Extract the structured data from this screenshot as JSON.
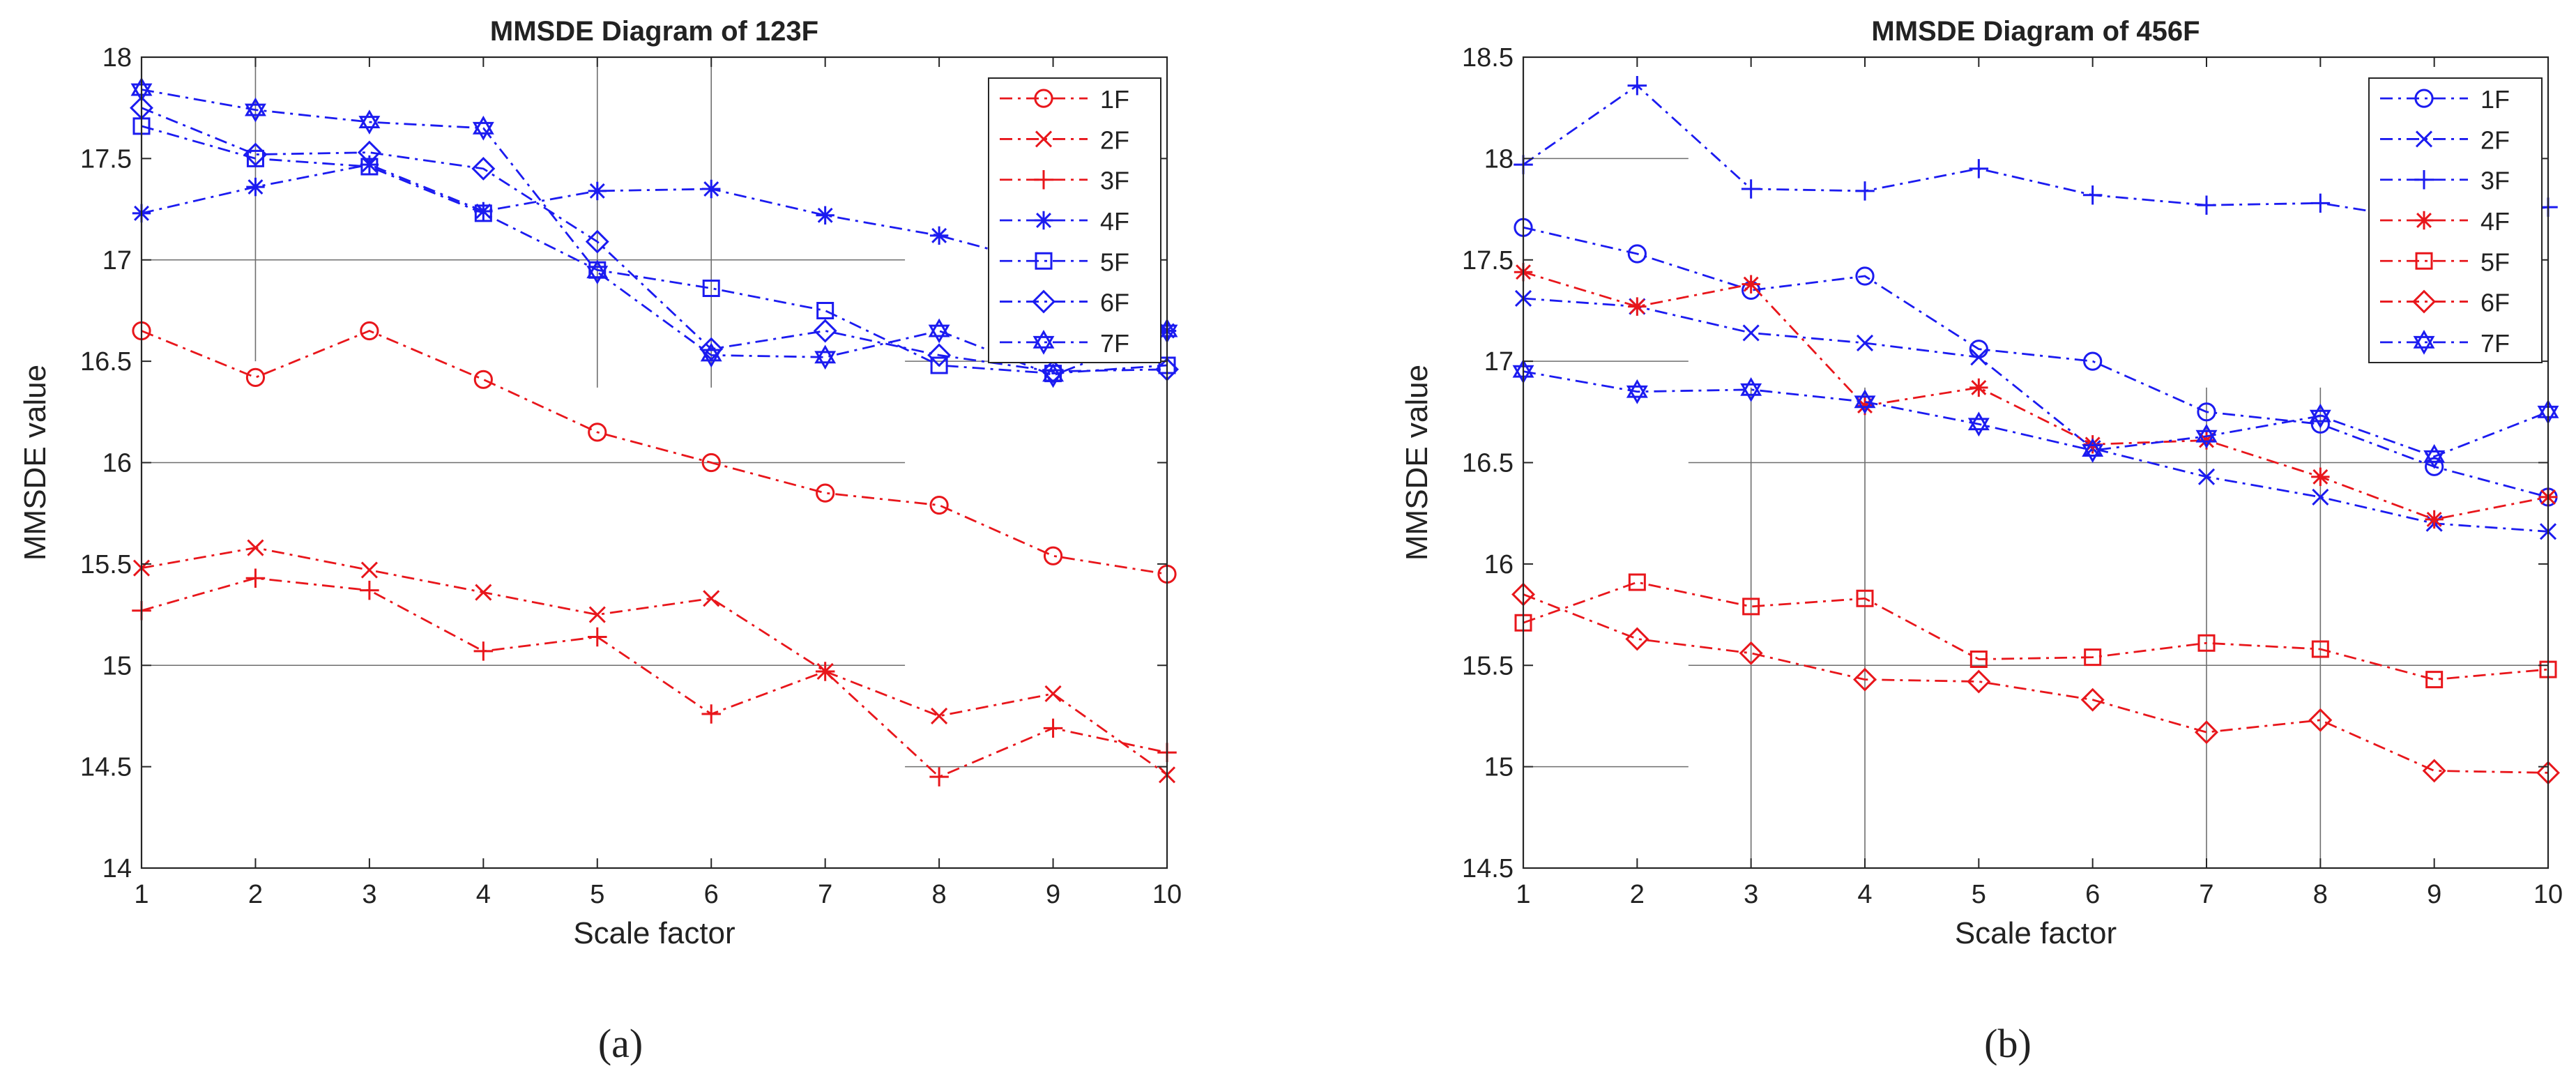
{
  "colors": {
    "red": "#e8161b",
    "blue": "#1b1bf0",
    "axis": "#262626",
    "grid": "#6e6e6e"
  },
  "chart_data": [
    {
      "type": "line",
      "panel_label": "(a)",
      "title": "MMSDE Diagram of 123F",
      "xlabel": "Scale factor",
      "ylabel": "MMSDE value",
      "xlim": [
        1,
        10
      ],
      "ylim": [
        14,
        18
      ],
      "xticks": [
        1,
        2,
        3,
        4,
        5,
        6,
        7,
        8,
        9,
        10
      ],
      "yticks": [
        14,
        14.5,
        15,
        15.5,
        16,
        16.5,
        17,
        17.5,
        18
      ],
      "ytick_labels": [
        "14",
        "14.5",
        "15",
        "15.5",
        "16",
        "16.5",
        "17",
        "17.5",
        "18"
      ],
      "legend_position": "top-right",
      "series": [
        {
          "name": "1F",
          "color": "red",
          "marker": "circle",
          "values": [
            16.65,
            16.42,
            16.65,
            16.41,
            16.15,
            16.0,
            15.85,
            15.79,
            15.54,
            15.45
          ]
        },
        {
          "name": "2F",
          "color": "red",
          "marker": "x",
          "values": [
            15.48,
            15.58,
            15.47,
            15.36,
            15.25,
            15.33,
            14.97,
            14.75,
            14.86,
            14.46
          ]
        },
        {
          "name": "3F",
          "color": "red",
          "marker": "plus",
          "values": [
            15.27,
            15.43,
            15.37,
            15.07,
            15.14,
            14.76,
            14.97,
            14.45,
            14.69,
            14.57
          ]
        },
        {
          "name": "4F",
          "color": "blue",
          "marker": "star",
          "values": [
            17.23,
            17.36,
            17.47,
            17.24,
            17.34,
            17.35,
            17.22,
            17.12,
            16.97,
            16.65
          ]
        },
        {
          "name": "5F",
          "color": "blue",
          "marker": "square",
          "values": [
            17.66,
            17.5,
            17.46,
            17.23,
            16.95,
            16.86,
            16.75,
            16.48,
            16.44,
            16.48
          ]
        },
        {
          "name": "6F",
          "color": "blue",
          "marker": "diamond",
          "values": [
            17.75,
            17.52,
            17.53,
            17.45,
            17.09,
            16.56,
            16.65,
            16.53,
            16.45,
            16.46
          ]
        },
        {
          "name": "7F",
          "color": "blue",
          "marker": "hexagram",
          "values": [
            17.84,
            17.74,
            17.68,
            17.65,
            16.94,
            16.53,
            16.52,
            16.65,
            16.43,
            16.65
          ]
        }
      ],
      "grid_segments": [
        {
          "orientation": "v",
          "at": 2,
          "from": 16.5,
          "to": 18
        },
        {
          "orientation": "v",
          "at": 5,
          "from": 16.37,
          "to": 18
        },
        {
          "orientation": "v",
          "at": 6,
          "from": 16.37,
          "to": 18
        },
        {
          "orientation": "h",
          "at": 17,
          "from": 1,
          "to": 7.7
        },
        {
          "orientation": "h",
          "at": 16,
          "from": 1,
          "to": 7.7
        },
        {
          "orientation": "h",
          "at": 15,
          "from": 1,
          "to": 7.7
        },
        {
          "orientation": "h",
          "at": 14.5,
          "from": 7.7,
          "to": 10
        },
        {
          "orientation": "h",
          "at": 16.5,
          "from": 7.7,
          "to": 10
        }
      ]
    },
    {
      "type": "line",
      "panel_label": "(b)",
      "title": "MMSDE Diagram of 456F",
      "xlabel": "Scale factor",
      "ylabel": "MMSDE value",
      "xlim": [
        1,
        10
      ],
      "ylim": [
        14.5,
        18.5
      ],
      "xticks": [
        1,
        2,
        3,
        4,
        5,
        6,
        7,
        8,
        9,
        10
      ],
      "yticks": [
        14.5,
        15,
        15.5,
        16,
        16.5,
        17,
        17.5,
        18,
        18.5
      ],
      "ytick_labels": [
        "14.5",
        "15",
        "15.5",
        "16",
        "16.5",
        "17",
        "17.5",
        "18",
        "18.5"
      ],
      "legend_position": "top-right",
      "series": [
        {
          "name": "1F",
          "color": "blue",
          "marker": "circle",
          "values": [
            17.66,
            17.53,
            17.35,
            17.42,
            17.06,
            17.0,
            16.75,
            16.69,
            16.48,
            16.33
          ]
        },
        {
          "name": "2F",
          "color": "blue",
          "marker": "x",
          "values": [
            17.31,
            17.27,
            17.14,
            17.09,
            17.02,
            16.57,
            16.43,
            16.33,
            16.2,
            16.16
          ]
        },
        {
          "name": "3F",
          "color": "blue",
          "marker": "plus",
          "values": [
            17.97,
            18.36,
            17.85,
            17.84,
            17.95,
            17.82,
            17.77,
            17.78,
            17.69,
            17.76
          ]
        },
        {
          "name": "4F",
          "color": "red",
          "marker": "star",
          "values": [
            17.44,
            17.27,
            17.38,
            16.78,
            16.87,
            16.59,
            16.61,
            16.43,
            16.22,
            16.33
          ]
        },
        {
          "name": "5F",
          "color": "red",
          "marker": "square",
          "values": [
            15.71,
            15.91,
            15.79,
            15.83,
            15.53,
            15.54,
            15.61,
            15.58,
            15.43,
            15.48
          ]
        },
        {
          "name": "6F",
          "color": "red",
          "marker": "diamond",
          "values": [
            15.85,
            15.63,
            15.56,
            15.43,
            15.42,
            15.33,
            15.17,
            15.23,
            14.98,
            14.97
          ]
        },
        {
          "name": "7F",
          "color": "blue",
          "marker": "hexagram",
          "values": [
            16.95,
            16.85,
            16.86,
            16.8,
            16.69,
            16.56,
            16.63,
            16.73,
            16.53,
            16.75
          ]
        }
      ],
      "grid_segments": [
        {
          "orientation": "v",
          "at": 3,
          "from": 14.5,
          "to": 16.87
        },
        {
          "orientation": "v",
          "at": 4,
          "from": 14.5,
          "to": 16.87
        },
        {
          "orientation": "v",
          "at": 7,
          "from": 14.5,
          "to": 16.87
        },
        {
          "orientation": "v",
          "at": 8,
          "from": 14.5,
          "to": 16.87
        },
        {
          "orientation": "h",
          "at": 18,
          "from": 1,
          "to": 2.45
        },
        {
          "orientation": "h",
          "at": 17,
          "from": 1,
          "to": 2.45
        },
        {
          "orientation": "h",
          "at": 15,
          "from": 1,
          "to": 2.45
        },
        {
          "orientation": "h",
          "at": 16.5,
          "from": 2.45,
          "to": 10
        },
        {
          "orientation": "h",
          "at": 15.5,
          "from": 2.45,
          "to": 10
        }
      ]
    }
  ]
}
